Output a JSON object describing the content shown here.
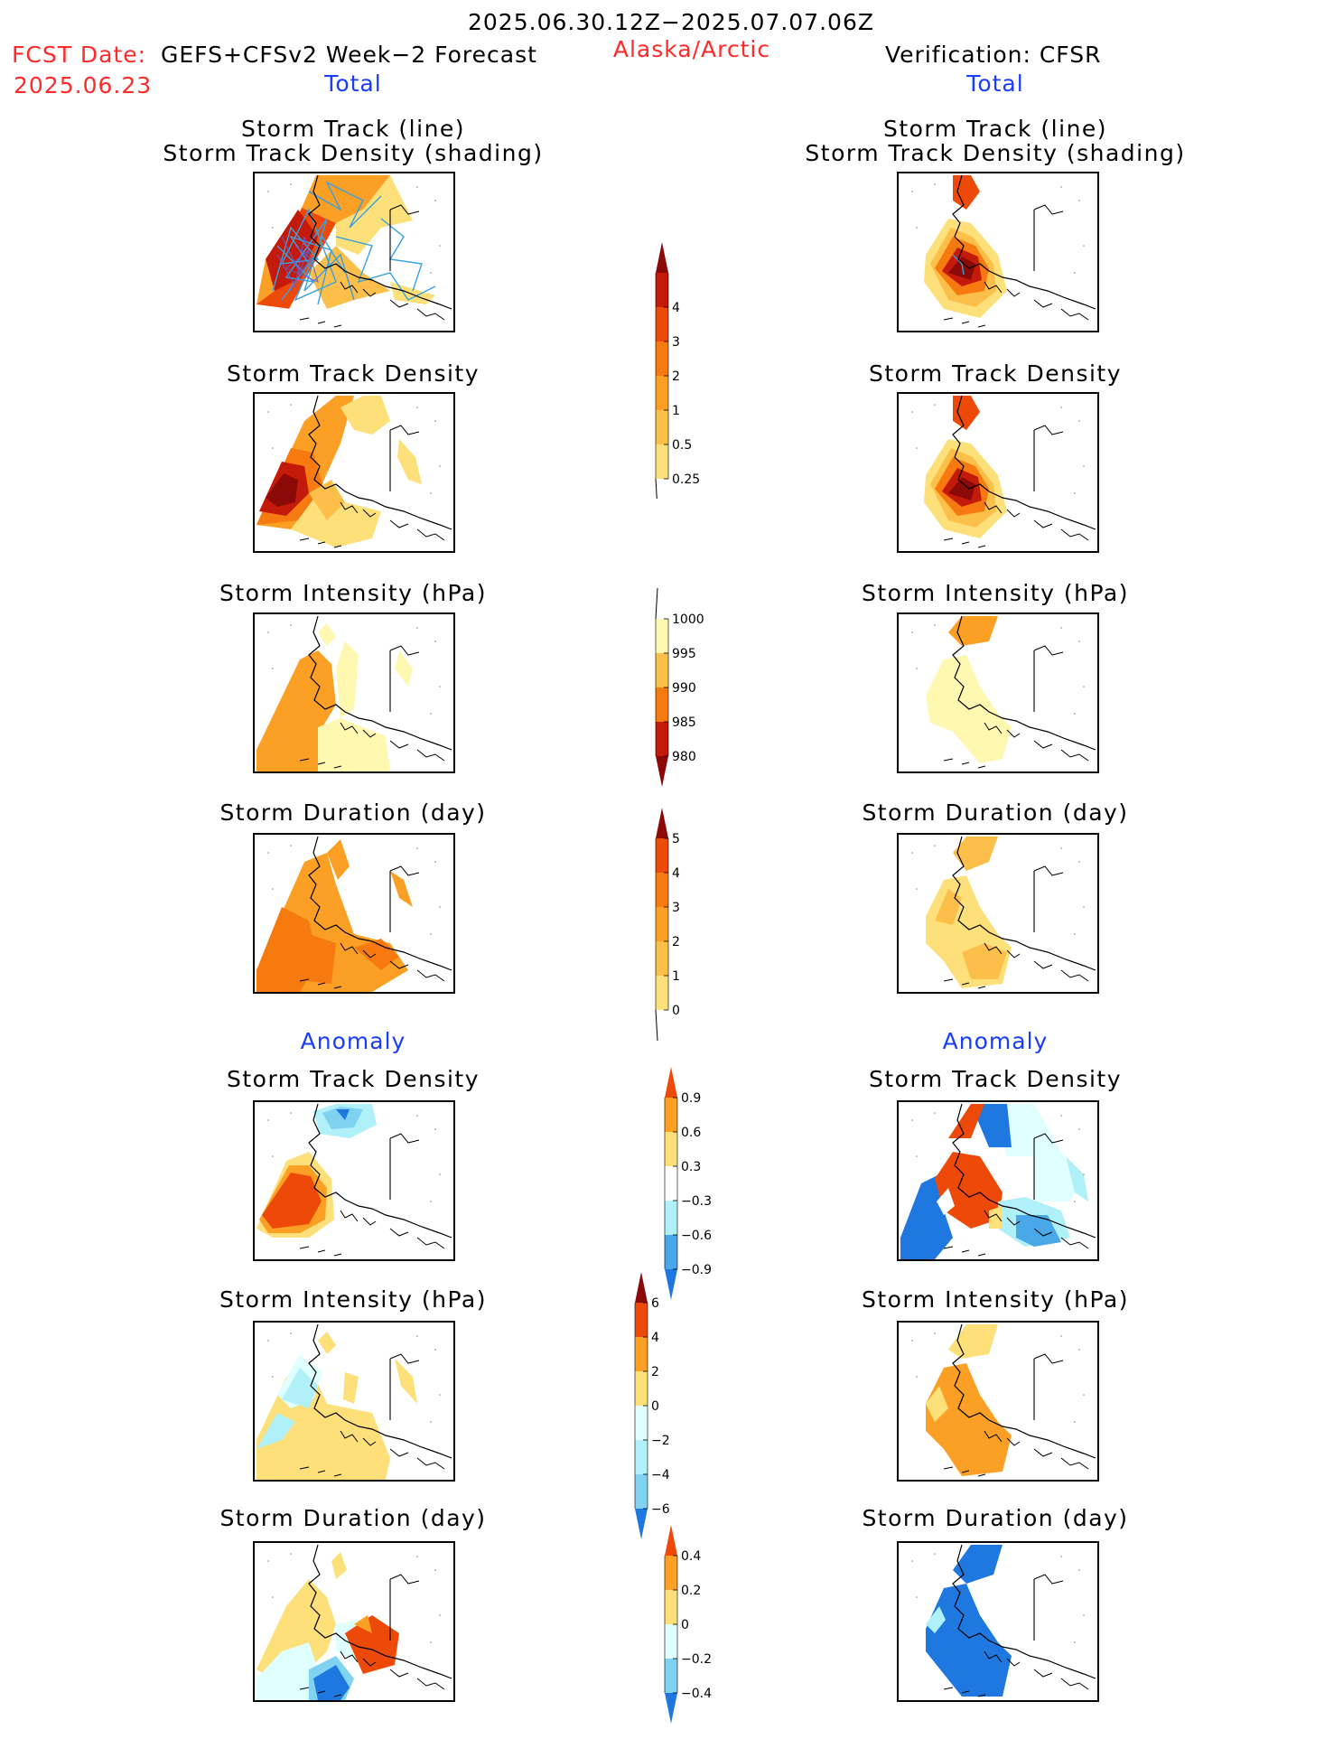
{
  "header": {
    "period": "2025.06.30.12Z−2025.07.07.06Z",
    "fcst_label": "FCST Date:",
    "fcst_date": "2025.06.23",
    "model": "GEFS+CFSv2 Week−2 Forecast",
    "region": "Alaska/Arctic",
    "verification": "Verification: CFSR"
  },
  "sections": {
    "total_label": "Total",
    "anomaly_label": "Anomaly"
  },
  "columns": [
    {
      "id": "forecast",
      "panels": [
        {
          "key": "track_line",
          "title1": "Storm Track (line)",
          "title2": "Storm Track Density (shading)"
        },
        {
          "key": "track_density",
          "title1": "Storm Track Density"
        },
        {
          "key": "intensity",
          "title1": "Storm Intensity (hPa)"
        },
        {
          "key": "duration",
          "title1": "Storm Duration (day)"
        },
        {
          "key": "anom_density",
          "title1": "Storm Track Density"
        },
        {
          "key": "anom_intensity",
          "title1": "Storm Intensity (hPa)"
        },
        {
          "key": "anom_duration",
          "title1": "Storm Duration (day)"
        }
      ]
    },
    {
      "id": "verification",
      "panels": [
        {
          "key": "track_line",
          "title1": "Storm Track (line)",
          "title2": "Storm Track Density (shading)"
        },
        {
          "key": "track_density",
          "title1": "Storm Track Density"
        },
        {
          "key": "intensity",
          "title1": "Storm Intensity (hPa)"
        },
        {
          "key": "duration",
          "title1": "Storm Duration (day)"
        },
        {
          "key": "anom_density",
          "title1": "Storm Track Density"
        },
        {
          "key": "anom_intensity",
          "title1": "Storm Intensity (hPa)"
        },
        {
          "key": "anom_duration",
          "title1": "Storm Duration (day)"
        }
      ]
    }
  ],
  "colors": {
    "warm": [
      "#fff8b0",
      "#fde07a",
      "#fcc04a",
      "#fba024",
      "#f77a10",
      "#ed4a0a",
      "#c41a0a",
      "#8b0a08"
    ],
    "cool": [
      "#e0ffff",
      "#b0f0f8",
      "#7fd2f0",
      "#4aa8e8",
      "#1e78e0",
      "#0a50c8"
    ],
    "track_line": "#3aa0e0"
  },
  "chart_data": [
    {
      "type": "colorbar",
      "name": "track_density_total",
      "ticks": [
        "4",
        "3",
        "2",
        "1",
        "0.5",
        "0.25"
      ],
      "colors": [
        "#fff8b0",
        "#fde07a",
        "#fcc04a",
        "#fba024",
        "#f77a10",
        "#ed4a0a",
        "#c41a0a",
        "#8b0a08"
      ]
    },
    {
      "type": "colorbar",
      "name": "intensity_total",
      "ticks": [
        "1000",
        "995",
        "990",
        "985",
        "980"
      ],
      "colors": [
        "#ffffff",
        "#fff8b0",
        "#fcc04a",
        "#f77a10",
        "#c41a0a",
        "#8b0a08"
      ]
    },
    {
      "type": "colorbar",
      "name": "duration_total",
      "ticks": [
        "5",
        "4",
        "3",
        "2",
        "1",
        "0"
      ],
      "colors": [
        "#fff8b0",
        "#fde07a",
        "#fcc04a",
        "#fba024",
        "#f77a10",
        "#ed4a0a",
        "#8b0a08"
      ]
    },
    {
      "type": "colorbar",
      "name": "density_anomaly",
      "ticks": [
        "0.9",
        "0.6",
        "0.3",
        "−0.3",
        "−0.6",
        "−0.9"
      ],
      "colors": [
        "#ed4a0a",
        "#fba024",
        "#fde07a",
        "#ffffff",
        "#b0f0f8",
        "#4aa8e8",
        "#1e78e0"
      ]
    },
    {
      "type": "colorbar",
      "name": "intensity_anomaly",
      "ticks": [
        "6",
        "4",
        "2",
        "0",
        "−2",
        "−4",
        "−6"
      ],
      "colors": [
        "#8b0a08",
        "#ed4a0a",
        "#fba024",
        "#fde07a",
        "#e0ffff",
        "#b0f0f8",
        "#7fd2f0",
        "#1e78e0"
      ]
    },
    {
      "type": "colorbar",
      "name": "duration_anomaly",
      "ticks": [
        "0.4",
        "0.2",
        "0",
        "−0.2",
        "−0.4"
      ],
      "colors": [
        "#ed4a0a",
        "#fba024",
        "#fde07a",
        "#e0ffff",
        "#7fd2f0",
        "#1e78e0"
      ]
    }
  ]
}
